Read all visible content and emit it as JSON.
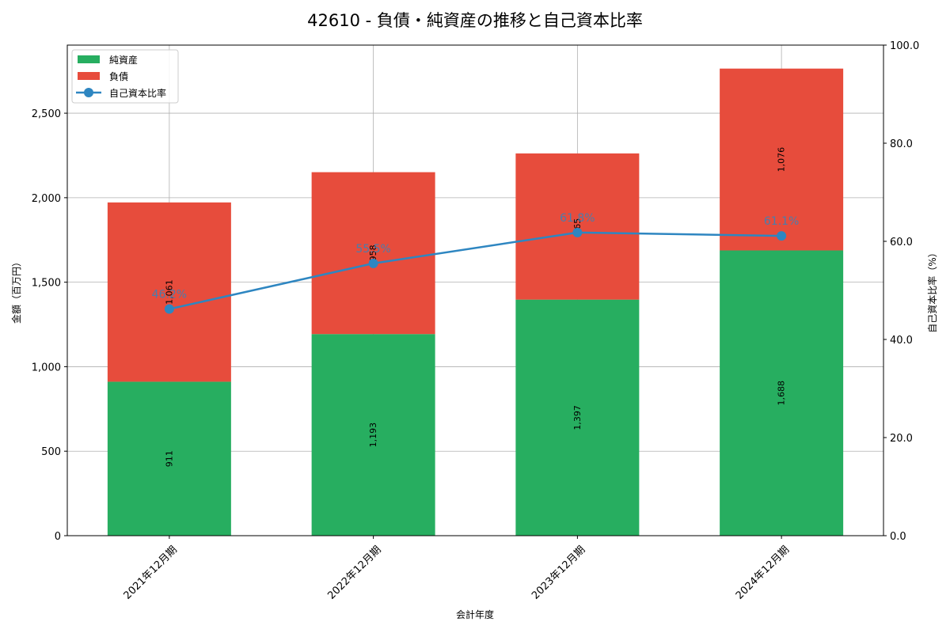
{
  "chart_data": {
    "type": "bar",
    "title": "42610 - 負債・純資産の推移と自己資本比率",
    "categories": [
      "2021年12月期",
      "2022年12月期",
      "2023年12月期",
      "2024年12月期"
    ],
    "series": [
      {
        "name": "純資産",
        "type": "bar",
        "stacked": true,
        "axis": "left",
        "color": "#27ae60",
        "values": [
          911,
          1193,
          1397,
          1688
        ]
      },
      {
        "name": "負債",
        "type": "bar",
        "stacked": true,
        "axis": "left",
        "color": "#e74c3c",
        "values": [
          1061,
          958,
          865,
          1076
        ]
      },
      {
        "name": "自己資本比率",
        "type": "line",
        "axis": "right",
        "color": "#2e86c1",
        "values": [
          46.2,
          55.5,
          61.8,
          61.1
        ]
      }
    ],
    "bar_labels": {
      "net_assets": [
        "911",
        "1,193",
        "1,397",
        "1,688"
      ],
      "liabilities": [
        "1,061",
        "958",
        "865",
        "1,076"
      ],
      "ratio": [
        "46.2%",
        "55.5%",
        "61.8%",
        "61.1%"
      ]
    },
    "xlabel": "会計年度",
    "ylabel": "金額（百万円）",
    "y2label": "自己資本比率（%）",
    "ylim": [
      0,
      2903
    ],
    "y2lim": [
      0,
      100
    ],
    "yticks": [
      "0",
      "500",
      "1,000",
      "1,500",
      "2,000",
      "2,500"
    ],
    "y2ticks": [
      "0.0",
      "20.0",
      "40.0",
      "60.0",
      "80.0",
      "100.0"
    ],
    "grid": true,
    "legend_position": "upper left"
  }
}
